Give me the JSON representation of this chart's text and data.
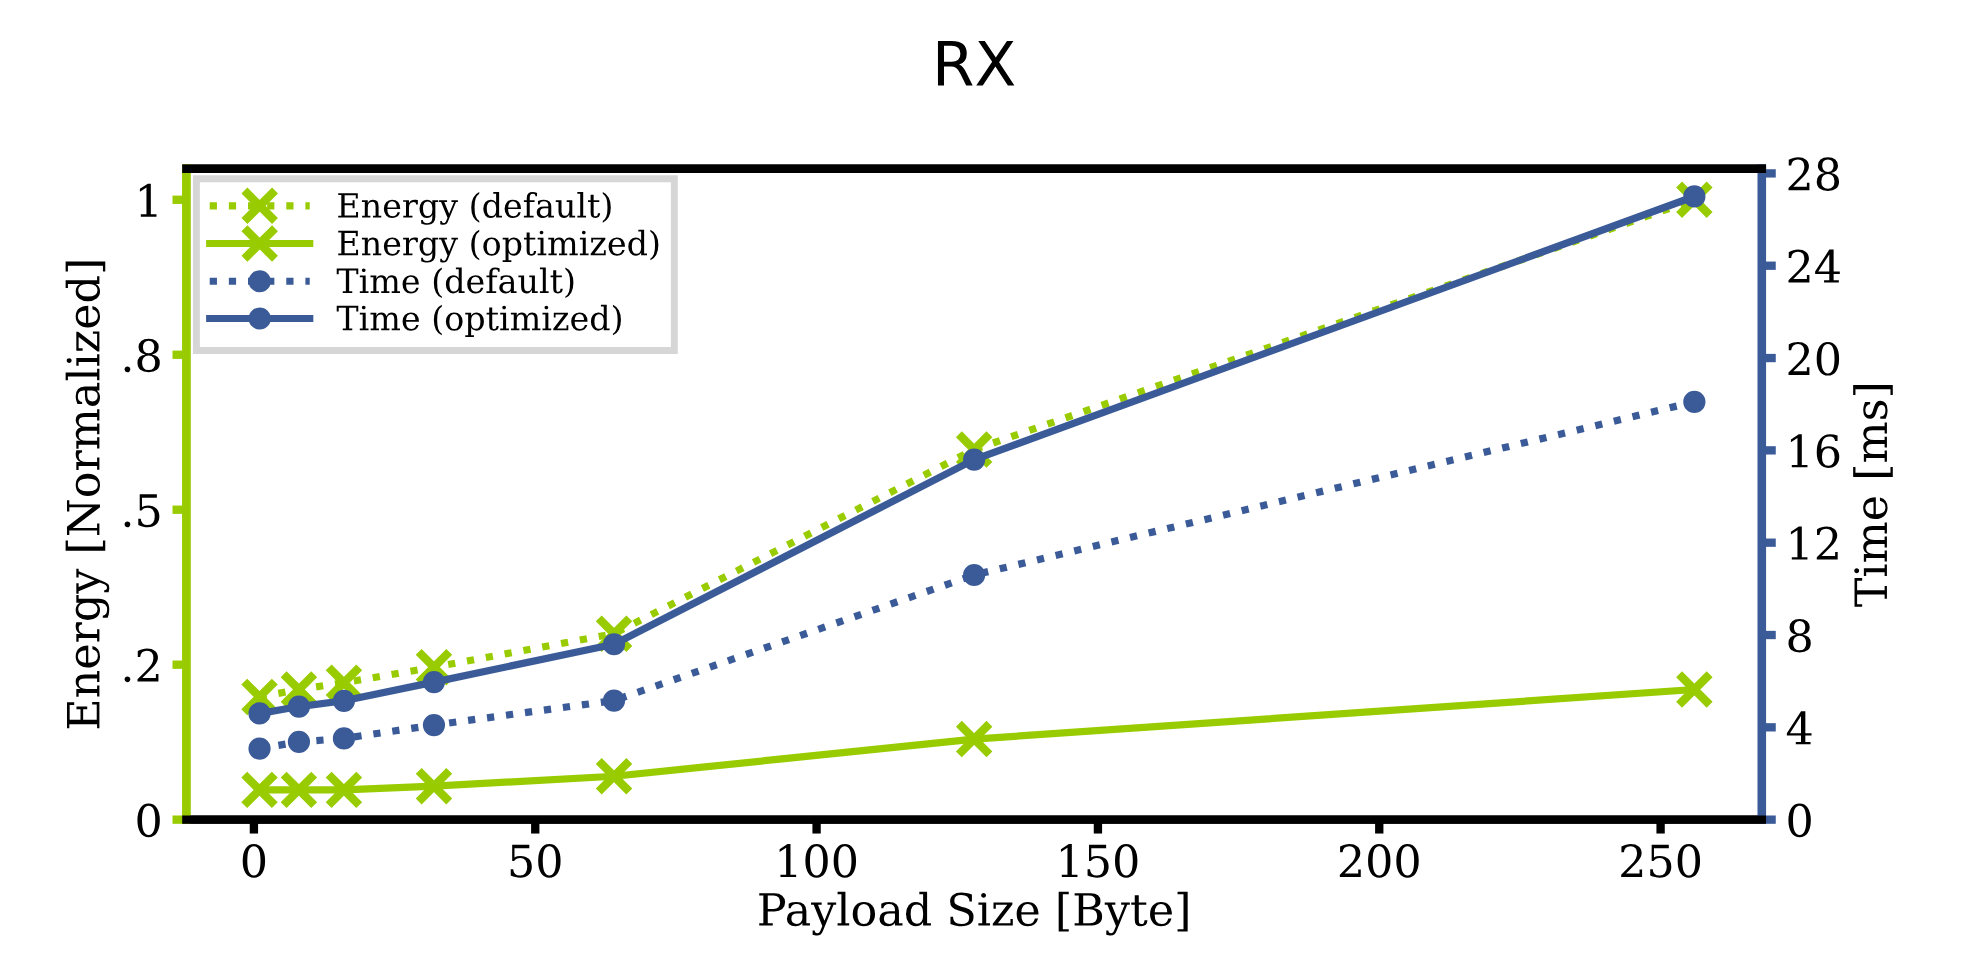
{
  "chart_data": {
    "type": "line",
    "title": "RX",
    "xlabel": "Payload Size [Byte]",
    "ylabel": "Energy [Normalized]",
    "y2label": "Time [ms]",
    "x": [
      1,
      8,
      16,
      32,
      64,
      128,
      256
    ],
    "series": [
      {
        "name": "Energy (default)",
        "color": "#99cc00",
        "line_style": "dotted",
        "marker": "cross",
        "values": [
          0.198,
          0.21,
          0.221,
          0.246,
          0.3,
          0.597,
          1.0
        ]
      },
      {
        "name": "Energy (optimized)",
        "color": "#99cc00",
        "line_style": "solid",
        "marker": "cross",
        "values": [
          0.048,
          0.048,
          0.048,
          0.054,
          0.07,
          0.13,
          0.21
        ]
      },
      {
        "name": "Time (default)",
        "color": "#3b5b98",
        "line_style": "dotted",
        "marker": "circle",
        "axis": "y2",
        "values": [
          3.08,
          3.37,
          3.52,
          4.1,
          5.16,
          10.6,
          18.1
        ]
      },
      {
        "name": "Time (optimized)",
        "color": "#3b5b98",
        "line_style": "solid",
        "marker": "circle",
        "axis": "y2",
        "values": [
          4.6,
          4.9,
          5.15,
          5.96,
          7.6,
          15.6,
          27.0
        ]
      }
    ],
    "xlim": [
      -12,
      268
    ],
    "xticks": [
      0,
      50,
      100,
      150,
      200,
      250
    ],
    "ylim": [
      0,
      1.05
    ],
    "yticks": [
      0,
      {
        "value": 0.25,
        "label": ".2"
      },
      {
        "value": 0.5,
        "label": ".5"
      },
      {
        "value": 0.75,
        "label": ".8"
      },
      1
    ],
    "y2lim": [
      0,
      28.2
    ],
    "y2ticks": [
      0,
      4,
      8,
      12,
      16,
      20,
      24,
      28
    ],
    "legend": "top left",
    "grid": false
  }
}
